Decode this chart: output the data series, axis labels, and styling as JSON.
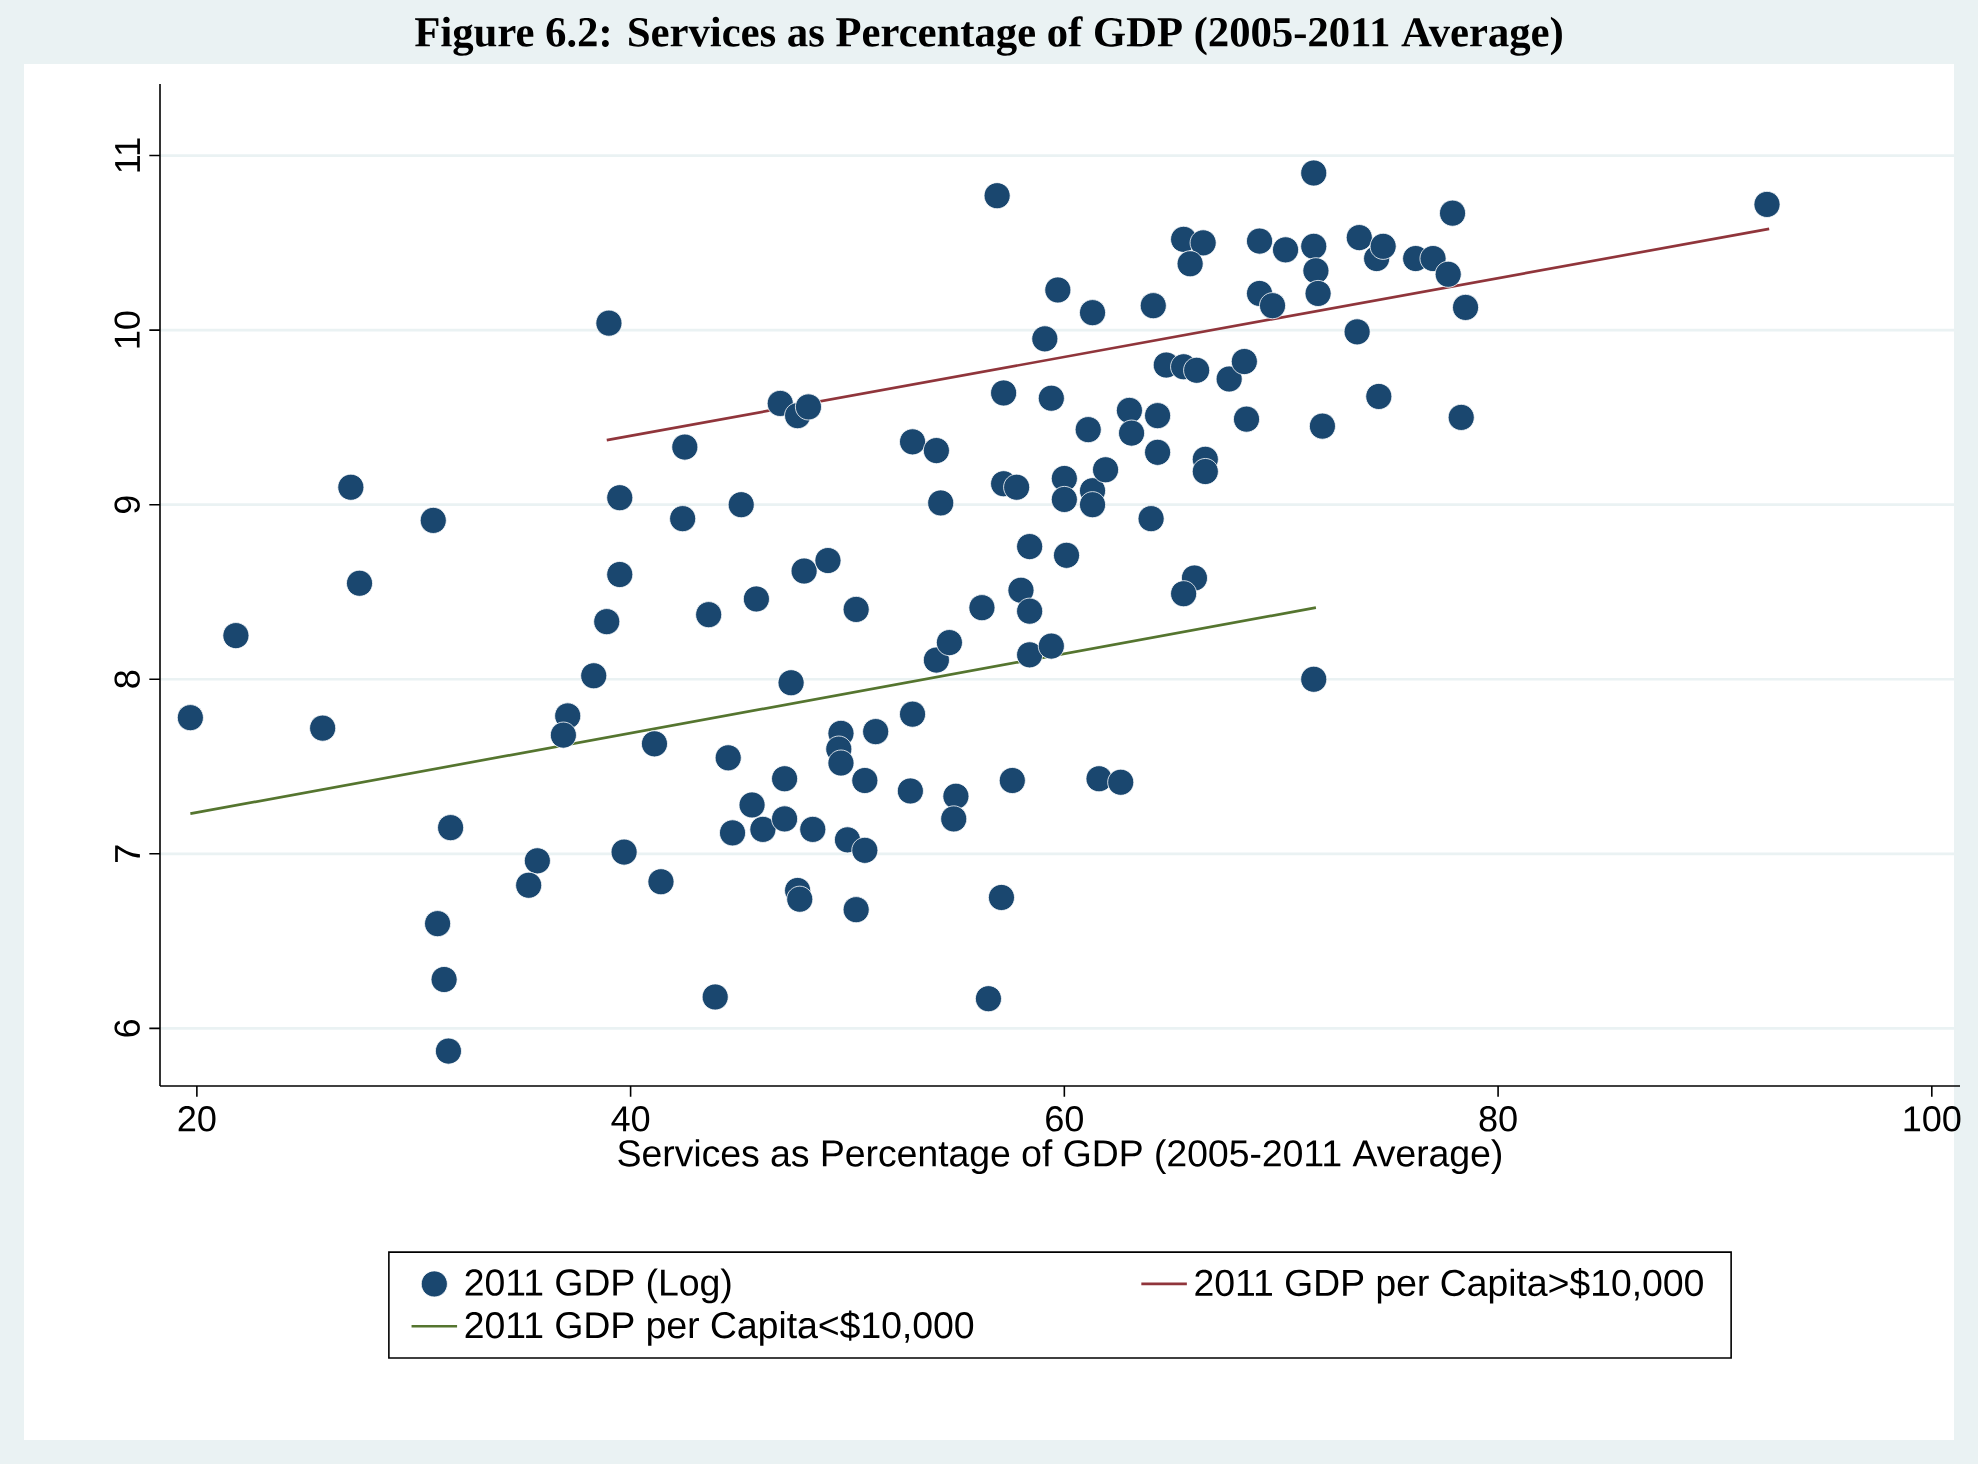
{
  "chart_data": {
    "type": "scatter",
    "title": "Figure 6.2: Services as Percentage of GDP (2005-2011 Average)",
    "xlabel": "Services as Percentage of GDP (2005-2011 Average)",
    "xlim": [
      18.3,
      101.3
    ],
    "ylim": [
      5.67,
      11.41
    ],
    "xticks": [
      20,
      40,
      60,
      80,
      100
    ],
    "yticks": [
      6,
      7,
      8,
      9,
      10,
      11
    ],
    "grid": "y",
    "legend": "bottom",
    "series": [
      {
        "name": "2011 GDP (Log)",
        "color": "#1a476f",
        "marker": "circle",
        "x": [
          19.7,
          21.8,
          25.8,
          27.1,
          27.5,
          30.9,
          31.7,
          31.1,
          31.4,
          31.6,
          35.7,
          35.3,
          37.1,
          36.9,
          38.3,
          38.9,
          39.0,
          39.5,
          39.5,
          39.7,
          41.1,
          41.4,
          42.5,
          42.4,
          43.6,
          45.1,
          44.5,
          44.7,
          43.9,
          45.6,
          46.1,
          45.8,
          46.9,
          47.7,
          48.2,
          47.1,
          47.1,
          48.4,
          47.4,
          47.7,
          47.8,
          48.0,
          49.1,
          49.7,
          49.6,
          49.7,
          50.0,
          50.8,
          50.4,
          50.8,
          50.4,
          51.3,
          52.9,
          53.0,
          53.0,
          54.1,
          54.3,
          54.1,
          54.7,
          55.0,
          54.9,
          56.2,
          56.9,
          56.5,
          57.1,
          57.2,
          57.2,
          57.8,
          57.6,
          58.0,
          58.4,
          58.4,
          58.4,
          59.4,
          59.1,
          59.4,
          59.7,
          60.0,
          60.0,
          60.1,
          61.1,
          61.3,
          61.3,
          61.3,
          61.6,
          61.9,
          62.6,
          63.0,
          63.1,
          64.0,
          64.1,
          64.3,
          64.3,
          64.7,
          65.5,
          66.1,
          65.5,
          66.4,
          65.8,
          66.0,
          65.5,
          66.5,
          66.5,
          67.6,
          68.3,
          68.4,
          69.0,
          69.0,
          69.6,
          70.2,
          71.5,
          71.6,
          71.7,
          71.5,
          71.5,
          71.9,
          73.5,
          73.6,
          74.4,
          74.7,
          74.5,
          76.2,
          77.0,
          77.7,
          77.9,
          78.3,
          78.5,
          92.4
        ],
        "values": [
          7.78,
          8.25,
          7.72,
          9.1,
          8.55,
          8.91,
          7.15,
          6.6,
          6.28,
          5.87,
          6.96,
          6.82,
          7.79,
          7.68,
          8.02,
          8.33,
          10.04,
          8.6,
          9.04,
          7.01,
          7.63,
          6.84,
          9.33,
          8.92,
          8.37,
          9.0,
          7.55,
          7.12,
          6.18,
          7.28,
          7.14,
          8.46,
          9.58,
          9.51,
          9.56,
          7.43,
          7.2,
          7.14,
          7.98,
          6.79,
          6.74,
          8.62,
          8.68,
          7.69,
          7.6,
          7.52,
          7.08,
          7.02,
          8.4,
          7.42,
          6.68,
          7.7,
          7.36,
          7.8,
          9.36,
          9.31,
          9.01,
          8.11,
          8.21,
          7.33,
          7.2,
          8.41,
          10.77,
          6.17,
          6.75,
          9.64,
          9.12,
          9.1,
          7.42,
          8.51,
          8.39,
          8.76,
          8.14,
          8.19,
          9.95,
          9.61,
          10.23,
          9.15,
          9.03,
          8.71,
          9.43,
          10.1,
          9.08,
          9.0,
          7.43,
          9.2,
          7.41,
          9.54,
          9.41,
          8.92,
          10.14,
          9.51,
          9.3,
          9.8,
          9.79,
          9.77,
          10.52,
          10.5,
          10.38,
          8.58,
          8.49,
          9.26,
          9.19,
          9.72,
          9.82,
          9.49,
          10.51,
          10.21,
          10.14,
          10.46,
          10.48,
          10.34,
          10.21,
          10.9,
          8.0,
          9.45,
          9.99,
          10.53,
          10.41,
          10.48,
          9.62,
          10.41,
          10.41,
          10.32,
          10.67,
          9.5,
          10.13,
          10.72
        ]
      },
      {
        "name": "2011 GDP per Capita>$10,000",
        "type": "line",
        "marker": "none",
        "color": "#90353b",
        "x": [
          38.9,
          92.5
        ],
        "values": [
          9.37,
          10.58
        ]
      },
      {
        "name": "2011 GDP per Capita<$10,000",
        "type": "line",
        "marker": "none",
        "color": "#55752f",
        "x": [
          19.7,
          71.6
        ],
        "values": [
          7.23,
          8.41
        ]
      }
    ]
  }
}
